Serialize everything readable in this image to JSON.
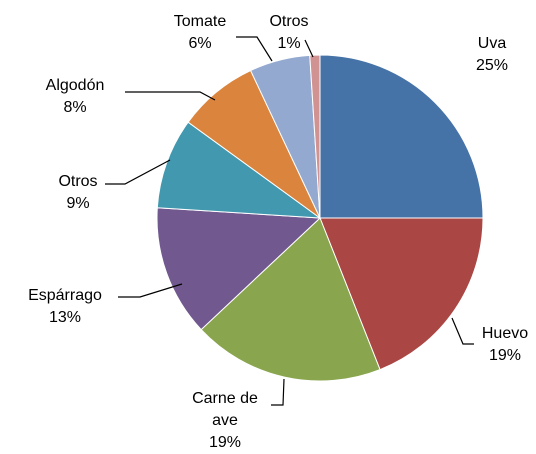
{
  "chart_data": {
    "type": "pie",
    "categories": [
      "Uva",
      "Huevo",
      "Carne de ave",
      "Espárrago",
      "Otros",
      "Algodón",
      "Tomate",
      "Otros"
    ],
    "values": [
      25,
      19,
      19,
      13,
      9,
      8,
      6,
      1
    ],
    "value_labels": [
      "25%",
      "19%",
      "19%",
      "13%",
      "9%",
      "8%",
      "6%",
      "1%"
    ],
    "colors": [
      "#4572a7",
      "#aa4643",
      "#89a54e",
      "#71588f",
      "#4198af",
      "#db843d",
      "#93a9cf",
      "#d19392"
    ]
  }
}
